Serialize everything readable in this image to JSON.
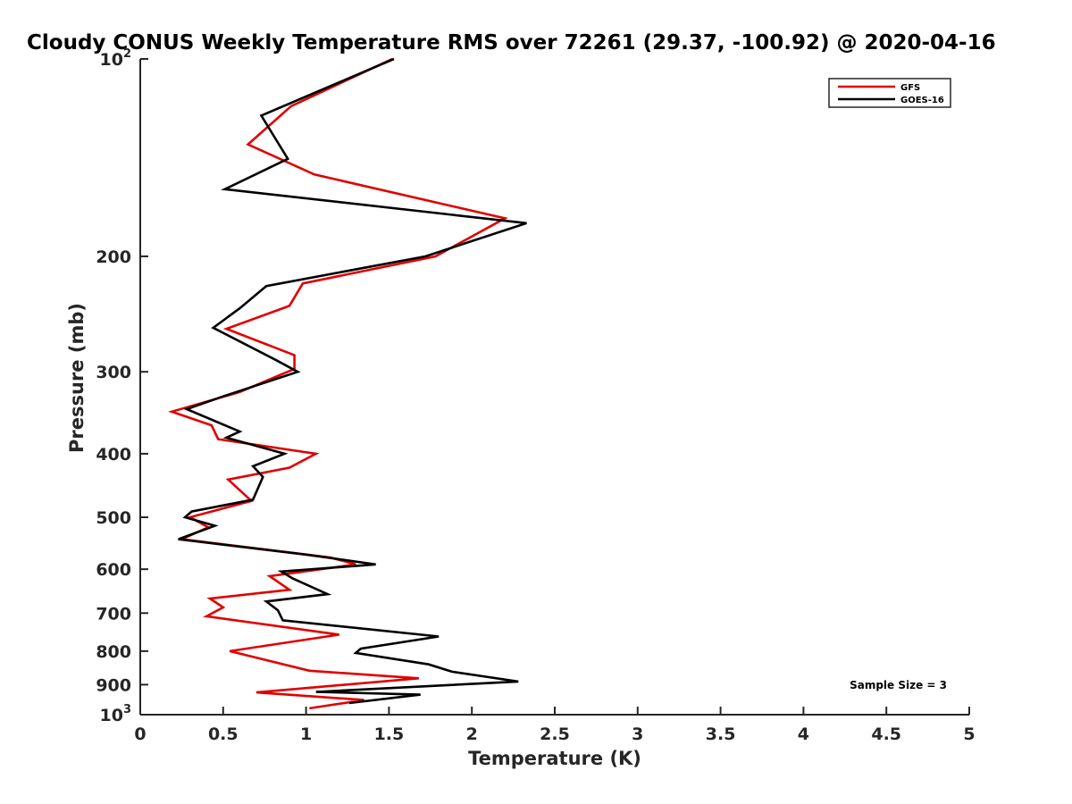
{
  "chart_data": {
    "type": "line",
    "title": "Cloudy CONUS Weekly Temperature RMS over 72261 (29.37, -100.92) @ 2020-04-16",
    "xlabel": "Temperature (K)",
    "ylabel": "Pressure (mb)",
    "xlim": [
      0,
      5
    ],
    "ylim": [
      100,
      1000
    ],
    "y_scale": "log",
    "y_reversed": true,
    "x_ticks": [
      0,
      0.5,
      1,
      1.5,
      2,
      2.5,
      3,
      3.5,
      4,
      4.5,
      5
    ],
    "x_tick_labels": [
      "0",
      "0.5",
      "1",
      "1.5",
      "2",
      "2.5",
      "3",
      "3.5",
      "4",
      "4.5",
      "5"
    ],
    "y_ticks": [
      {
        "value": 100,
        "base": "10",
        "exp": "2"
      },
      {
        "value": 200,
        "base": "200",
        "exp": ""
      },
      {
        "value": 300,
        "base": "300",
        "exp": ""
      },
      {
        "value": 400,
        "base": "400",
        "exp": ""
      },
      {
        "value": 500,
        "base": "500",
        "exp": ""
      },
      {
        "value": 600,
        "base": "600",
        "exp": ""
      },
      {
        "value": 700,
        "base": "700",
        "exp": ""
      },
      {
        "value": 800,
        "base": "800",
        "exp": ""
      },
      {
        "value": 900,
        "base": "900",
        "exp": ""
      },
      {
        "value": 1000,
        "base": "10",
        "exp": "3"
      }
    ],
    "grid": false,
    "legend_position": "top-right",
    "annotation": "Sample Size = 3",
    "series": [
      {
        "name": "GFS",
        "color": "#e00000",
        "points": [
          [
            1.52,
            100
          ],
          [
            0.91,
            118
          ],
          [
            0.65,
            135
          ],
          [
            1.05,
            150
          ],
          [
            2.2,
            175
          ],
          [
            1.78,
            200
          ],
          [
            0.98,
            220
          ],
          [
            0.9,
            238
          ],
          [
            0.52,
            258
          ],
          [
            0.93,
            283
          ],
          [
            0.93,
            297
          ],
          [
            0.6,
            322
          ],
          [
            0.19,
            345
          ],
          [
            0.43,
            362
          ],
          [
            0.47,
            380
          ],
          [
            1.06,
            400
          ],
          [
            0.9,
            420
          ],
          [
            0.53,
            438
          ],
          [
            0.67,
            472
          ],
          [
            0.3,
            500
          ],
          [
            0.41,
            518
          ],
          [
            0.25,
            540
          ],
          [
            1.15,
            576
          ],
          [
            1.3,
            590
          ],
          [
            0.78,
            615
          ],
          [
            0.9,
            645
          ],
          [
            0.42,
            665
          ],
          [
            0.5,
            686
          ],
          [
            0.4,
            708
          ],
          [
            1.2,
            755
          ],
          [
            0.54,
            800
          ],
          [
            1.02,
            857
          ],
          [
            1.68,
            880
          ],
          [
            0.7,
            925
          ],
          [
            1.35,
            950
          ],
          [
            1.02,
            978
          ]
        ]
      },
      {
        "name": "GOES-16",
        "color": "#000000",
        "points": [
          [
            1.53,
            100
          ],
          [
            0.73,
            122
          ],
          [
            0.89,
            142
          ],
          [
            0.51,
            158
          ],
          [
            2.33,
            178
          ],
          [
            1.72,
            200
          ],
          [
            0.76,
            222
          ],
          [
            0.6,
            240
          ],
          [
            0.44,
            257
          ],
          [
            0.82,
            288
          ],
          [
            0.95,
            300
          ],
          [
            0.5,
            327
          ],
          [
            0.28,
            342
          ],
          [
            0.6,
            370
          ],
          [
            0.52,
            378
          ],
          [
            0.87,
            400
          ],
          [
            0.68,
            418
          ],
          [
            0.74,
            434
          ],
          [
            0.68,
            470
          ],
          [
            0.31,
            490
          ],
          [
            0.27,
            500
          ],
          [
            0.45,
            515
          ],
          [
            0.23,
            540
          ],
          [
            1.0,
            570
          ],
          [
            1.42,
            590
          ],
          [
            0.85,
            605
          ],
          [
            0.92,
            620
          ],
          [
            1.13,
            655
          ],
          [
            0.76,
            672
          ],
          [
            0.83,
            693
          ],
          [
            0.86,
            718
          ],
          [
            1.8,
            760
          ],
          [
            1.33,
            793
          ],
          [
            1.3,
            805
          ],
          [
            1.74,
            838
          ],
          [
            1.88,
            860
          ],
          [
            2.28,
            890
          ],
          [
            1.06,
            923
          ],
          [
            1.69,
            932
          ],
          [
            1.26,
            960
          ]
        ]
      }
    ]
  }
}
